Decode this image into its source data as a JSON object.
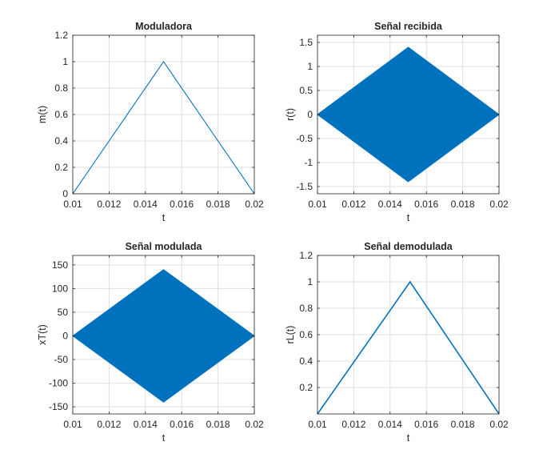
{
  "colors": {
    "line": "#0072bd",
    "grid": "#dfdfdf",
    "axis": "#262626",
    "background": "#ffffff"
  },
  "chart_data": [
    {
      "type": "line",
      "title": "Moduladora",
      "xlabel": "t",
      "ylabel": "m(t)",
      "xlim": [
        0.01,
        0.02
      ],
      "ylim": [
        0,
        1.2
      ],
      "xticks": [
        0.01,
        0.012,
        0.014,
        0.016,
        0.018,
        0.02
      ],
      "xtick_labels": [
        "0.01",
        "0.012",
        "0.014",
        "0.016",
        "0.018",
        "0.02"
      ],
      "yticks": [
        0,
        0.2,
        0.4,
        0.6,
        0.8,
        1,
        1.2
      ],
      "ytick_labels": [
        "0",
        "0.2",
        "0.4",
        "0.6",
        "0.8",
        "1",
        "1.2"
      ],
      "grid": true,
      "series": [
        {
          "x": [
            0.01,
            0.015,
            0.02
          ],
          "y": [
            0,
            1,
            0
          ]
        }
      ]
    },
    {
      "type": "area",
      "title": "Señal recibida",
      "xlabel": "t",
      "ylabel": "r(t)",
      "xlim": [
        0.01,
        0.02
      ],
      "ylim": [
        -1.65,
        1.65
      ],
      "xticks": [
        0.01,
        0.012,
        0.014,
        0.016,
        0.018,
        0.02
      ],
      "xtick_labels": [
        "0.01",
        "0.012",
        "0.014",
        "0.016",
        "0.018",
        "0.02"
      ],
      "yticks": [
        -1.5,
        -1,
        -0.5,
        0,
        0.5,
        1,
        1.5
      ],
      "ytick_labels": [
        "-1.5",
        "-1",
        "-0.5",
        "0",
        "0.5",
        "1",
        "1.5"
      ],
      "grid": true,
      "series": [
        {
          "x": [
            0.01,
            0.015,
            0.02
          ],
          "upper": [
            0,
            1.4,
            0
          ],
          "lower": [
            0,
            -1.4,
            0
          ]
        }
      ]
    },
    {
      "type": "area",
      "title": "Señal modulada",
      "xlabel": "t",
      "ylabel": "xT(t)",
      "xlim": [
        0.01,
        0.02
      ],
      "ylim": [
        -165,
        170
      ],
      "xticks": [
        0.01,
        0.012,
        0.014,
        0.016,
        0.018,
        0.02
      ],
      "xtick_labels": [
        "0.01",
        "0.012",
        "0.014",
        "0.016",
        "0.018",
        "0.02"
      ],
      "yticks": [
        -150,
        -100,
        -50,
        0,
        50,
        100,
        150
      ],
      "ytick_labels": [
        "-150",
        "-100",
        "-50",
        "0",
        "50",
        "100",
        "150"
      ],
      "grid": true,
      "series": [
        {
          "x": [
            0.01,
            0.015,
            0.02
          ],
          "upper": [
            0,
            140,
            0
          ],
          "lower": [
            0,
            -140,
            0
          ]
        }
      ]
    },
    {
      "type": "line",
      "title": "Señal demodulada",
      "xlabel": "t",
      "ylabel": "rL(t)",
      "xlim": [
        0.01,
        0.02
      ],
      "ylim": [
        0,
        1.2
      ],
      "xticks": [
        0.01,
        0.012,
        0.014,
        0.016,
        0.018,
        0.02
      ],
      "xtick_labels": [
        "0.01",
        "0.012",
        "0.014",
        "0.016",
        "0.018",
        "0.02"
      ],
      "yticks": [
        0.2,
        0.4,
        0.6,
        0.8,
        1,
        1.2
      ],
      "ytick_labels": [
        "0.2",
        "0.4",
        "0.6",
        "0.8",
        "1",
        "1.2"
      ],
      "grid": true,
      "series": [
        {
          "x": [
            0.01,
            0.0151,
            0.02
          ],
          "y": [
            0,
            1,
            0
          ]
        }
      ]
    }
  ]
}
